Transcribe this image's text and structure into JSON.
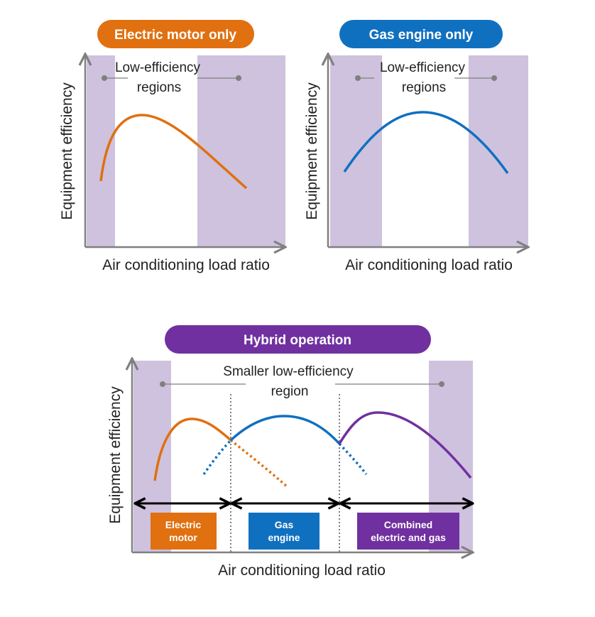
{
  "colors": {
    "electric": "#E07010",
    "gas": "#1070C0",
    "hybrid": "#7030A0",
    "region": "#CEC2DE",
    "axis": "#808080",
    "leader": "#7F7F7F"
  },
  "panel_electric": {
    "title": "Electric motor only",
    "note_line1": "Low-efficiency",
    "note_line2": "regions",
    "xlabel": "Air conditioning load ratio",
    "ylabel": "Equipment efficiency"
  },
  "panel_gas": {
    "title": "Gas engine only",
    "note_line1": "Low-efficiency",
    "note_line2": "regions",
    "xlabel": "Air conditioning load ratio",
    "ylabel": "Equipment efficiency"
  },
  "panel_hybrid": {
    "title": "Hybrid operation",
    "note_line1": "Smaller low-efficiency",
    "note_line2": "region",
    "xlabel": "Air conditioning load ratio",
    "ylabel": "Equipment efficiency",
    "mode_electric_1": "Electric",
    "mode_electric_2": "motor",
    "mode_gas_1": "Gas",
    "mode_gas_2": "engine",
    "mode_combined_1": "Combined",
    "mode_combined_2": "electric and gas"
  }
}
